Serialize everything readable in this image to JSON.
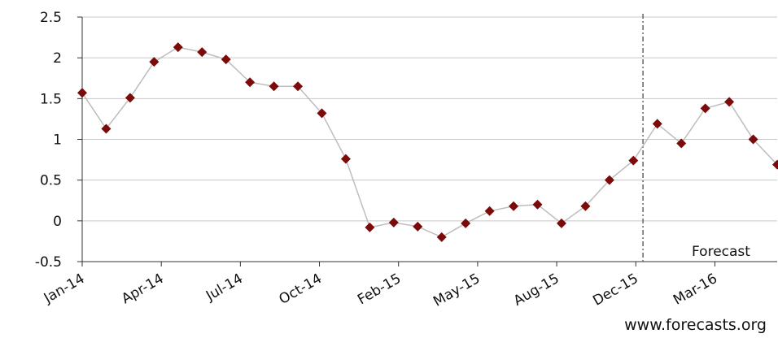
{
  "chart_data": {
    "type": "line",
    "x": [
      0,
      1,
      2,
      3,
      4,
      5,
      6,
      7,
      8,
      9,
      10,
      11,
      12,
      13,
      14,
      15,
      16,
      17,
      18,
      19,
      20,
      21,
      22,
      23,
      24,
      25,
      26,
      27,
      28,
      29
    ],
    "series": [
      {
        "color": "#7b0a0a",
        "line_color": "#bdbdbd",
        "values": [
          1.57,
          1.13,
          1.51,
          1.95,
          2.13,
          2.07,
          1.98,
          1.7,
          1.65,
          1.65,
          1.32,
          0.76,
          -0.08,
          -0.02,
          -0.07,
          -0.2,
          -0.03,
          0.12,
          0.18,
          0.2,
          -0.03,
          0.18,
          0.5,
          0.74,
          1.19,
          0.95,
          1.38,
          1.46,
          1.0,
          0.69
        ]
      }
    ],
    "xlim": [
      0,
      29
    ],
    "xticks": [
      {
        "value": 0,
        "label": "Jan-14"
      },
      {
        "value": 3.3,
        "label": "Apr-14"
      },
      {
        "value": 6.6,
        "label": "Jul-14"
      },
      {
        "value": 9.9,
        "label": "Oct-14"
      },
      {
        "value": 13.2,
        "label": "Feb-15"
      },
      {
        "value": 16.5,
        "label": "May-15"
      },
      {
        "value": 19.8,
        "label": "Aug-15"
      },
      {
        "value": 23.1,
        "label": "Dec-15"
      },
      {
        "value": 26.4,
        "label": "Mar-16"
      }
    ],
    "ylim": [
      -0.5,
      2.5
    ],
    "yticks": [
      -0.5,
      0,
      0.5,
      1,
      1.5,
      2,
      2.5
    ],
    "grid": true,
    "forecast_x": 23.4,
    "forecast_label": "Forecast",
    "source": "www.forecasts.org"
  }
}
